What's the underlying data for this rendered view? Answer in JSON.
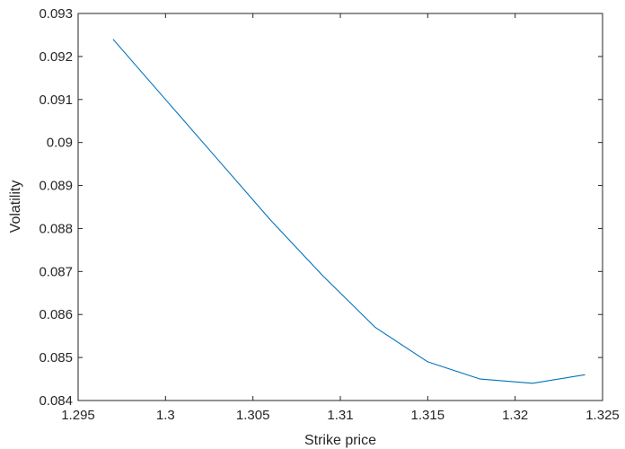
{
  "chart_data": {
    "type": "line",
    "title": "",
    "xlabel": "Strike price",
    "ylabel": "Volatility",
    "xlim": [
      1.295,
      1.325
    ],
    "ylim": [
      0.084,
      0.093
    ],
    "x_ticks": [
      1.295,
      1.3,
      1.305,
      1.31,
      1.315,
      1.32,
      1.325
    ],
    "x_tick_labels": [
      "1.295",
      "1.3",
      "1.305",
      "1.31",
      "1.315",
      "1.32",
      "1.325"
    ],
    "y_ticks": [
      0.084,
      0.085,
      0.086,
      0.087,
      0.088,
      0.089,
      0.09,
      0.091,
      0.092,
      0.093
    ],
    "y_tick_labels": [
      "0.084",
      "0.085",
      "0.086",
      "0.087",
      "0.088",
      "0.089",
      "0.09",
      "0.091",
      "0.092",
      "0.093"
    ],
    "grid": false,
    "legend": "none",
    "series": [
      {
        "color": "#0072BD",
        "x": [
          1.297,
          1.3,
          1.303,
          1.306,
          1.309,
          1.312,
          1.315,
          1.318,
          1.321,
          1.324
        ],
        "y": [
          0.0924,
          0.091,
          0.0896,
          0.0882,
          0.0869,
          0.0857,
          0.0849,
          0.0845,
          0.0844,
          0.0846
        ]
      }
    ]
  }
}
